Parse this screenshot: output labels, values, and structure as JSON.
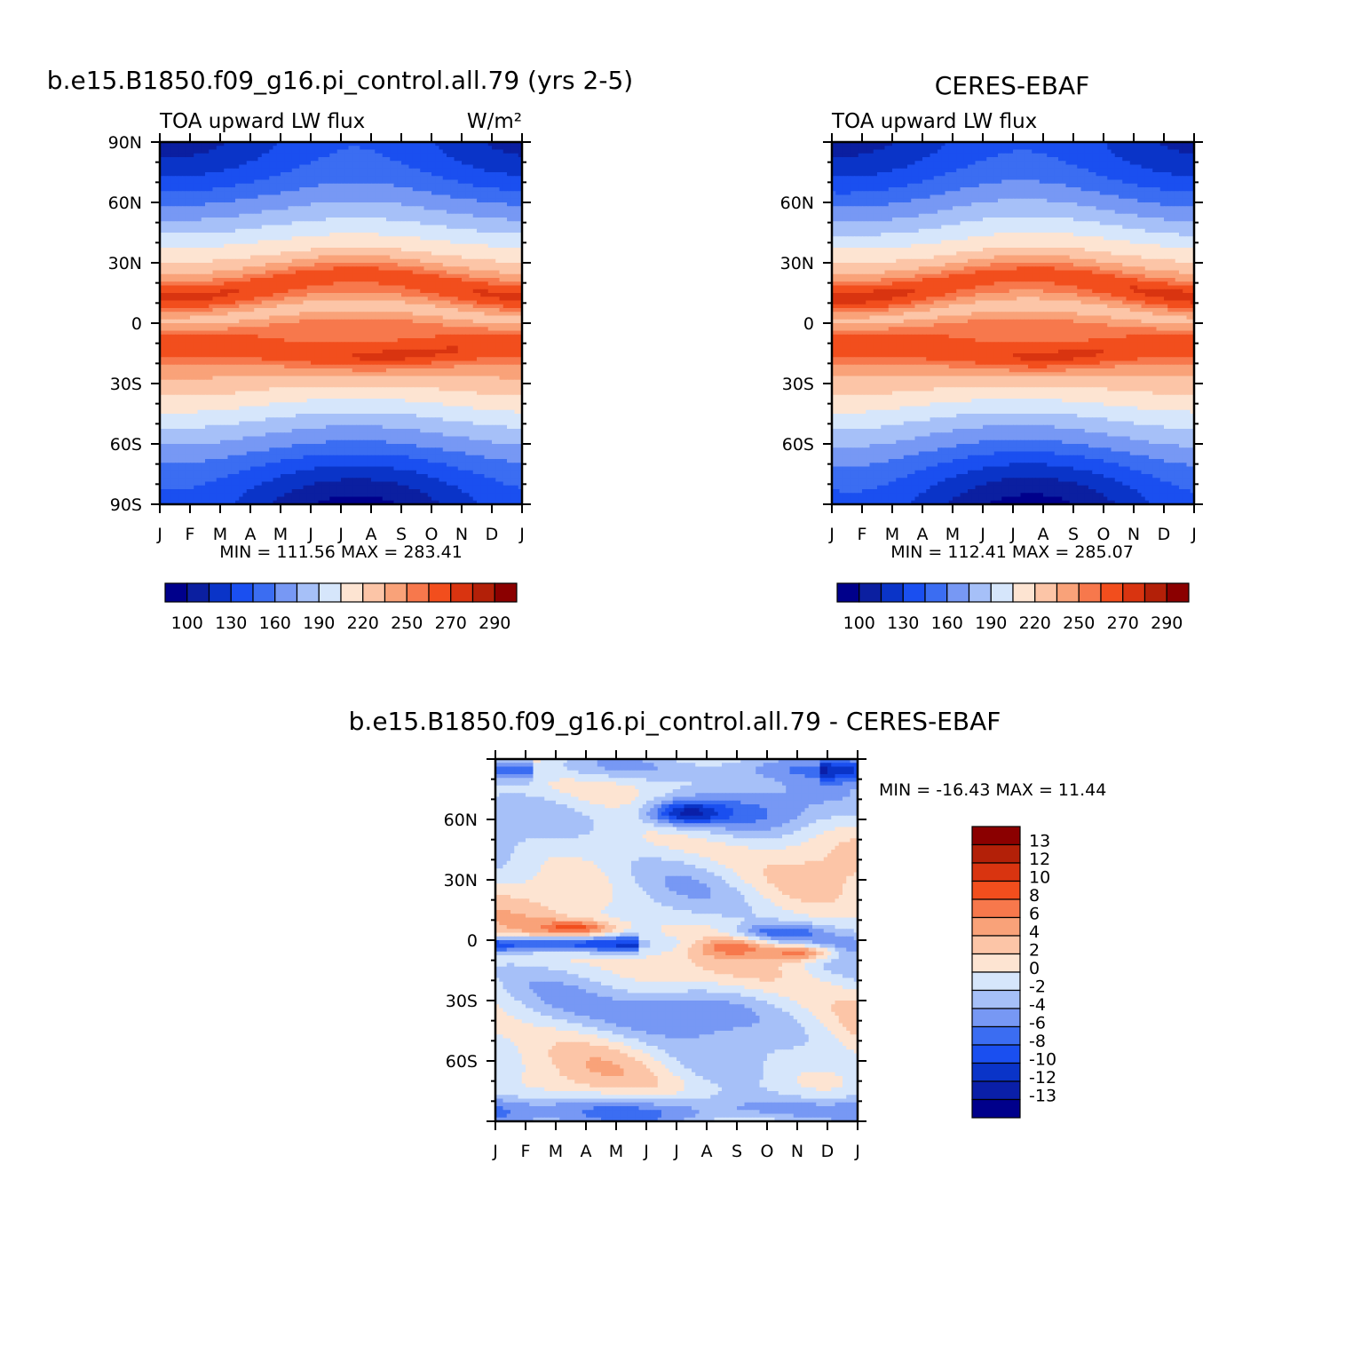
{
  "figure": {
    "top_left_title": "b.e15.B1850.f09_g16.pi_control.all.79 (yrs 2-5)",
    "top_right_title": "CERES-EBAF",
    "bottom_title": "b.e15.B1850.f09_g16.pi_control.all.79 - CERES-EBAF"
  },
  "colors": {
    "abs_scale": [
      "#00008b",
      "#0b1fa0",
      "#0a34c8",
      "#1a4ff0",
      "#3b6df2",
      "#7798f4",
      "#a6c0f8",
      "#d6e6fb",
      "#fde4d2",
      "#fcc5a7",
      "#f9a279",
      "#f7784c",
      "#f24e1d",
      "#d93410",
      "#b32008",
      "#8b0000"
    ],
    "diff_scale": [
      "#00008b",
      "#0a1fa8",
      "#0a34c8",
      "#1a4ff0",
      "#3b6df2",
      "#7798f4",
      "#a6c0f8",
      "#d6e6fb",
      "#fde4d2",
      "#fcc5a7",
      "#f9a279",
      "#f7784c",
      "#f24e1d",
      "#d93410",
      "#b32008",
      "#8b0000"
    ]
  },
  "chart_data": [
    {
      "type": "heatmap",
      "title": "b.e15.B1850.f09_g16.pi_control.all.79 (yrs 2-5)",
      "left_subtitle": "TOA upward LW flux",
      "right_subtitle": "W/m²",
      "x_tick_labels": [
        "J",
        "F",
        "M",
        "A",
        "M",
        "J",
        "J",
        "A",
        "S",
        "O",
        "N",
        "D",
        "J"
      ],
      "y_tick_labels": [
        "90N",
        "60N",
        "30N",
        "0",
        "30S",
        "60S",
        "90S"
      ],
      "y_values": [
        90,
        60,
        30,
        0,
        -30,
        -60,
        -90
      ],
      "min_max_text": "MIN = 111.56 MAX = 283.41",
      "min": 111.56,
      "max": 283.41,
      "colorbar_labels": [
        "100",
        "130",
        "160",
        "190",
        "220",
        "250",
        "270",
        "290"
      ]
    },
    {
      "type": "heatmap",
      "title": "CERES-EBAF",
      "left_subtitle": "TOA upward LW flux",
      "x_tick_labels": [
        "J",
        "F",
        "M",
        "A",
        "M",
        "J",
        "J",
        "A",
        "S",
        "O",
        "N",
        "D",
        "J"
      ],
      "y_tick_labels": [
        "60N",
        "30N",
        "0",
        "30S",
        "60S"
      ],
      "y_values": [
        60,
        30,
        0,
        -30,
        -60
      ],
      "min_max_text": "MIN = 112.41 MAX = 285.07",
      "min": 112.41,
      "max": 285.07,
      "colorbar_labels": [
        "100",
        "130",
        "160",
        "190",
        "220",
        "250",
        "270",
        "290"
      ]
    },
    {
      "type": "heatmap",
      "title": "b.e15.B1850.f09_g16.pi_control.all.79 - CERES-EBAF",
      "x_tick_labels": [
        "J",
        "F",
        "M",
        "A",
        "M",
        "J",
        "J",
        "A",
        "S",
        "O",
        "N",
        "D",
        "J"
      ],
      "y_tick_labels": [
        "60N",
        "30N",
        "0",
        "30S",
        "60S"
      ],
      "y_values": [
        60,
        30,
        0,
        -30,
        -60
      ],
      "min_max_text": "MIN = -16.43 MAX =  11.44",
      "min": -16.43,
      "max": 11.44,
      "colorbar_labels": [
        "13",
        "12",
        "10",
        "8",
        "6",
        "4",
        "2",
        "0",
        "-2",
        "-4",
        "-6",
        "-8",
        "-10",
        "-12",
        "-13"
      ]
    }
  ]
}
